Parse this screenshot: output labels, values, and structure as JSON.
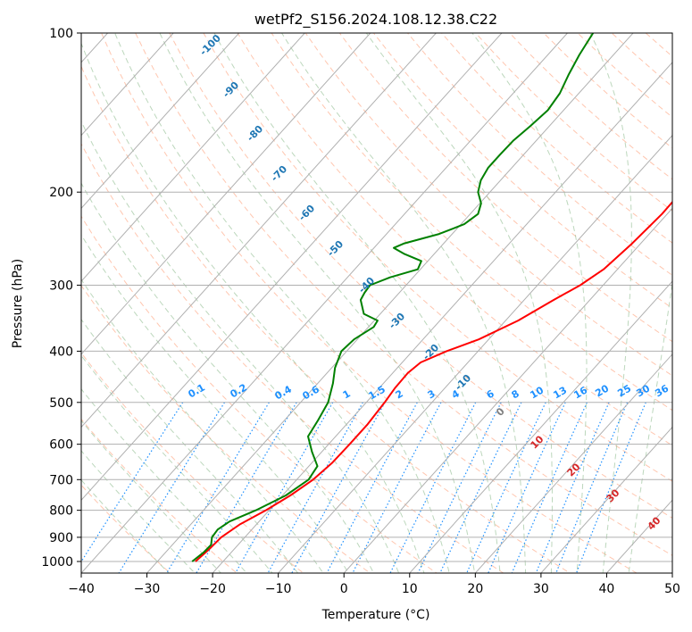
{
  "chart_data": {
    "type": "line",
    "diagram": "skew-T log-p",
    "title": "wetPf2_S156.2024.108.12.38.C22",
    "xlabel": "Temperature (°C)",
    "ylabel": "Pressure (hPa)",
    "xlim": [
      -40,
      50
    ],
    "ylim": [
      1050,
      100
    ],
    "y_scale": "log",
    "x_ticks": [
      -40,
      -30,
      -20,
      -10,
      0,
      10,
      20,
      30,
      40,
      50
    ],
    "y_ticks": [
      100,
      200,
      300,
      400,
      500,
      600,
      700,
      800,
      900,
      1000
    ],
    "grid": true,
    "series": [
      {
        "color": "#ff0000",
        "points": [
          {
            "p": 1000,
            "t": -24.2
          },
          {
            "p": 950,
            "t": -23.8
          },
          {
            "p": 900,
            "t": -23.6
          },
          {
            "p": 850,
            "t": -22.5
          },
          {
            "p": 800,
            "t": -20.5
          },
          {
            "p": 750,
            "t": -18.8
          },
          {
            "p": 700,
            "t": -17.5
          },
          {
            "p": 650,
            "t": -16.9
          },
          {
            "p": 600,
            "t": -16.8
          },
          {
            "p": 550,
            "t": -16.8
          },
          {
            "p": 500,
            "t": -17.2
          },
          {
            "p": 470,
            "t": -17.6
          },
          {
            "p": 440,
            "t": -17.7
          },
          {
            "p": 420,
            "t": -17.2
          },
          {
            "p": 400,
            "t": -14.8
          },
          {
            "p": 380,
            "t": -11.5
          },
          {
            "p": 350,
            "t": -8.1
          },
          {
            "p": 320,
            "t": -5.5
          },
          {
            "p": 300,
            "t": -3.5
          },
          {
            "p": 280,
            "t": -2.1
          },
          {
            "p": 250,
            "t": -1.3
          },
          {
            "p": 220,
            "t": -0.8
          },
          {
            "p": 200,
            "t": -0.9
          },
          {
            "p": 180,
            "t": -1.4
          },
          {
            "p": 160,
            "t": -2.2
          },
          {
            "p": 140,
            "t": -3.6
          },
          {
            "p": 120,
            "t": -6.4
          },
          {
            "p": 100,
            "t": -10.1
          }
        ]
      },
      {
        "color": "#008000",
        "points": [
          {
            "p": 1000,
            "t": -24.7
          },
          {
            "p": 960,
            "t": -24.2
          },
          {
            "p": 930,
            "t": -24.1
          },
          {
            "p": 900,
            "t": -25.0
          },
          {
            "p": 870,
            "t": -25.2
          },
          {
            "p": 840,
            "t": -24.5
          },
          {
            "p": 800,
            "t": -22.0
          },
          {
            "p": 750,
            "t": -19.5
          },
          {
            "p": 700,
            "t": -18.2
          },
          {
            "p": 660,
            "t": -18.7
          },
          {
            "p": 620,
            "t": -21.5
          },
          {
            "p": 580,
            "t": -24.2
          },
          {
            "p": 540,
            "t": -24.9
          },
          {
            "p": 500,
            "t": -25.8
          },
          {
            "p": 460,
            "t": -27.7
          },
          {
            "p": 430,
            "t": -29.5
          },
          {
            "p": 400,
            "t": -30.8
          },
          {
            "p": 380,
            "t": -30.5
          },
          {
            "p": 360,
            "t": -29.2
          },
          {
            "p": 350,
            "t": -29.5
          },
          {
            "p": 340,
            "t": -32.5
          },
          {
            "p": 320,
            "t": -34.9
          },
          {
            "p": 310,
            "t": -35.3
          },
          {
            "p": 300,
            "t": -35.5
          },
          {
            "p": 290,
            "t": -33.5
          },
          {
            "p": 280,
            "t": -30.4
          },
          {
            "p": 270,
            "t": -31.0
          },
          {
            "p": 262,
            "t": -34.5
          },
          {
            "p": 255,
            "t": -37.0
          },
          {
            "p": 250,
            "t": -36.0
          },
          {
            "p": 240,
            "t": -32.0
          },
          {
            "p": 230,
            "t": -29.5
          },
          {
            "p": 220,
            "t": -28.8
          },
          {
            "p": 210,
            "t": -29.8
          },
          {
            "p": 200,
            "t": -31.8
          },
          {
            "p": 190,
            "t": -33.0
          },
          {
            "p": 180,
            "t": -33.6
          },
          {
            "p": 170,
            "t": -33.6
          },
          {
            "p": 160,
            "t": -33.5
          },
          {
            "p": 150,
            "t": -32.9
          },
          {
            "p": 140,
            "t": -32.4
          },
          {
            "p": 130,
            "t": -32.9
          },
          {
            "p": 120,
            "t": -34.1
          },
          {
            "p": 110,
            "t": -35.2
          },
          {
            "p": 100,
            "t": -36.1
          }
        ]
      }
    ],
    "dry_adiabat_labels": [
      "-100",
      "-90",
      "-80",
      "-70",
      "-60",
      "-50",
      "-40",
      "-30",
      "-20",
      "-10"
    ],
    "mixing_ratio_labels": [
      "0.1",
      "0.2",
      "0.4",
      "0.6",
      "1",
      "1.5",
      "2",
      "3",
      "4",
      "6",
      "8",
      "10",
      "13",
      "16",
      "20",
      "25",
      "30",
      "36"
    ],
    "moist_adiabat_labels": [
      "0",
      "10",
      "20",
      "30",
      "40"
    ],
    "colors": {
      "temperature": "#ff0000",
      "dewpoint": "#008000",
      "isotherm": "#b0b0b0",
      "isobar": "#b0b0b0",
      "dry_adiabat": "#ffa07a",
      "moist_adiabat": "#8fbc8f",
      "mixing_ratio": "#1e90ff",
      "dry_label": "#1f77b4",
      "mixing_label": "#1e90ff",
      "moist_label": "#d62728",
      "zero_label": "#808080"
    }
  }
}
